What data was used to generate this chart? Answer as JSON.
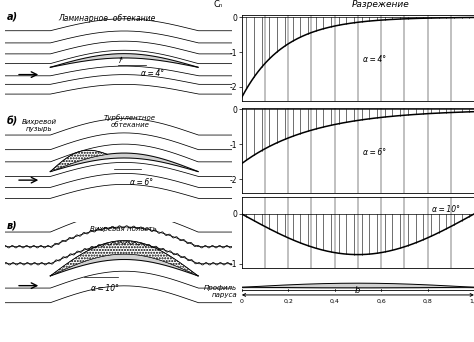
{
  "background_color": "#ffffff",
  "panel_labels": [
    "а)",
    "б)",
    "в)"
  ],
  "alpha_labels_flow": [
    "α = 4°",
    "α = 6°",
    "α = 10°"
  ],
  "alpha_labels_press": [
    "α = 4°",
    "α = 6°",
    "α = 10°"
  ],
  "label_laminar": "Ламинарное  обтекание",
  "label_vortex_bubble": "Вихревой\nпузырь",
  "label_turbulent": "Турбулентное\nобтекание",
  "label_vortex_band": "Вихревая полость",
  "razrezhenie": "Разрежение",
  "cp_label": "Cₙ",
  "profile_label": "Профиль\nпаруса",
  "b_label": "b",
  "xtick_labels": [
    "0",
    "0,2",
    "0,4",
    "0,6",
    "0,8",
    "1,0"
  ]
}
